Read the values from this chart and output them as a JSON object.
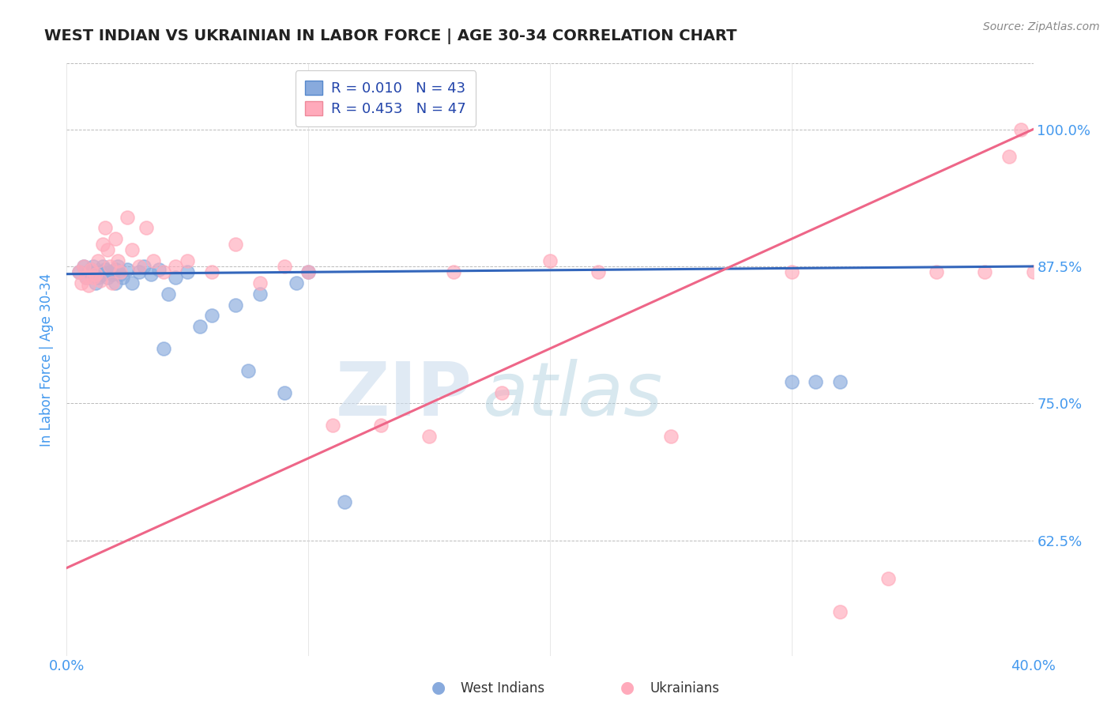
{
  "title": "WEST INDIAN VS UKRAINIAN IN LABOR FORCE | AGE 30-34 CORRELATION CHART",
  "source": "Source: ZipAtlas.com",
  "ylabel": "In Labor Force | Age 30-34",
  "legend_r_n": [
    {
      "R": 0.01,
      "N": 43,
      "label": "West Indians"
    },
    {
      "R": 0.453,
      "N": 47,
      "label": "Ukrainians"
    }
  ],
  "xlim": [
    0.0,
    0.4
  ],
  "ylim": [
    0.52,
    1.06
  ],
  "yticks": [
    0.625,
    0.75,
    0.875,
    1.0
  ],
  "ytick_labels": [
    "62.5%",
    "75.0%",
    "87.5%",
    "100.0%"
  ],
  "xticks": [
    0.0,
    0.1,
    0.2,
    0.3,
    0.4
  ],
  "xtick_labels_show": [
    "0.0%",
    "",
    "",
    "",
    "40.0%"
  ],
  "blue_scatter_color": "#88AADD",
  "pink_scatter_color": "#FFAABB",
  "blue_line_color": "#3366BB",
  "pink_line_color": "#EE6688",
  "axis_color": "#4499EE",
  "title_color": "#222222",
  "west_indian_x": [
    0.005,
    0.007,
    0.008,
    0.009,
    0.01,
    0.01,
    0.011,
    0.012,
    0.013,
    0.014,
    0.015,
    0.015,
    0.016,
    0.017,
    0.018,
    0.019,
    0.02,
    0.02,
    0.021,
    0.022,
    0.023,
    0.025,
    0.027,
    0.03,
    0.032,
    0.035,
    0.038,
    0.04,
    0.042,
    0.045,
    0.05,
    0.055,
    0.06,
    0.07,
    0.075,
    0.08,
    0.09,
    0.095,
    0.1,
    0.115,
    0.3,
    0.31,
    0.32
  ],
  "west_indian_y": [
    0.87,
    0.875,
    0.865,
    0.87,
    0.868,
    0.872,
    0.875,
    0.86,
    0.865,
    0.87,
    0.868,
    0.875,
    0.872,
    0.865,
    0.87,
    0.868,
    0.872,
    0.86,
    0.875,
    0.868,
    0.865,
    0.872,
    0.86,
    0.87,
    0.875,
    0.868,
    0.872,
    0.8,
    0.85,
    0.865,
    0.87,
    0.82,
    0.83,
    0.84,
    0.78,
    0.85,
    0.76,
    0.86,
    0.87,
    0.66,
    0.77,
    0.77,
    0.77
  ],
  "ukrainian_x": [
    0.005,
    0.006,
    0.007,
    0.008,
    0.009,
    0.01,
    0.011,
    0.012,
    0.013,
    0.014,
    0.015,
    0.016,
    0.017,
    0.018,
    0.019,
    0.02,
    0.021,
    0.022,
    0.025,
    0.027,
    0.03,
    0.033,
    0.036,
    0.04,
    0.045,
    0.05,
    0.06,
    0.07,
    0.08,
    0.09,
    0.1,
    0.11,
    0.13,
    0.15,
    0.16,
    0.18,
    0.2,
    0.22,
    0.25,
    0.3,
    0.32,
    0.34,
    0.36,
    0.38,
    0.39,
    0.395,
    0.4
  ],
  "ukrainian_y": [
    0.87,
    0.86,
    0.875,
    0.865,
    0.858,
    0.872,
    0.865,
    0.868,
    0.88,
    0.862,
    0.895,
    0.91,
    0.89,
    0.875,
    0.86,
    0.9,
    0.88,
    0.87,
    0.92,
    0.89,
    0.875,
    0.91,
    0.88,
    0.87,
    0.875,
    0.88,
    0.87,
    0.895,
    0.86,
    0.875,
    0.87,
    0.73,
    0.73,
    0.72,
    0.87,
    0.76,
    0.88,
    0.87,
    0.72,
    0.87,
    0.56,
    0.59,
    0.87,
    0.87,
    0.975,
    1.0,
    0.87
  ]
}
